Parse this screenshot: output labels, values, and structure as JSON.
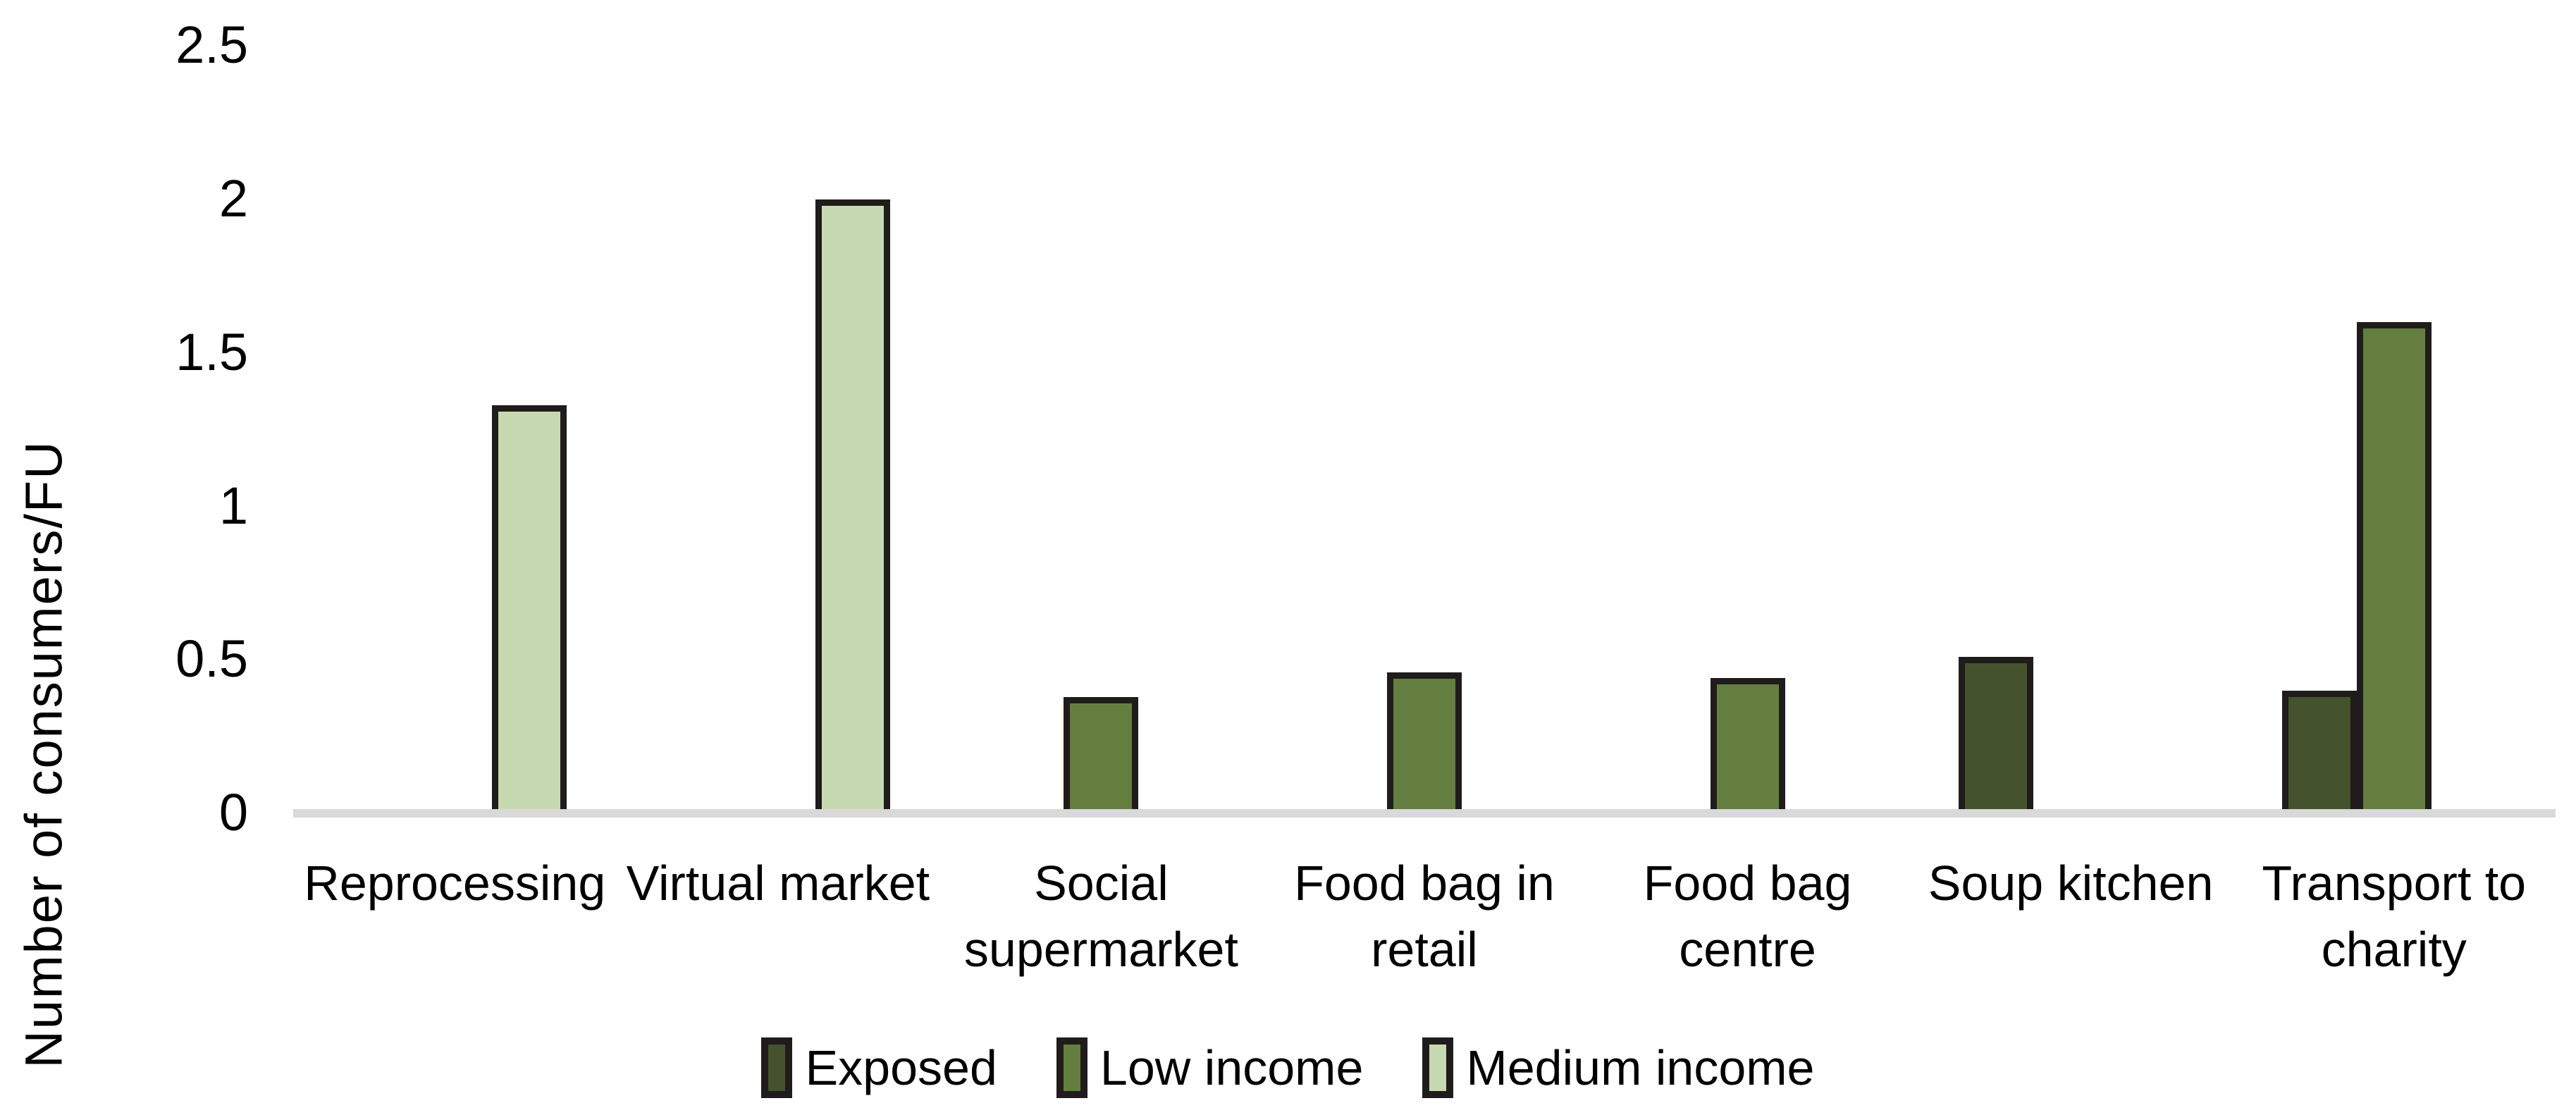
{
  "chart_data": {
    "type": "bar",
    "title": "",
    "xlabel": "",
    "ylabel": "Number of consumers/FU",
    "ylim": [
      0,
      2.5
    ],
    "ytick_values": [
      0,
      0.5,
      1,
      1.5,
      2,
      2.5
    ],
    "ytick_labels": [
      "0",
      "0.5",
      "1",
      "1.5",
      "2",
      "2.5"
    ],
    "grid": false,
    "legend_position": "bottom",
    "categories": [
      "Reprocessing",
      "Virtual market",
      "Social supermarket",
      "Food bag in retail",
      "Food bag centre",
      "Soup kitchen",
      "Transport to charity"
    ],
    "category_lines": [
      [
        "Reprocessing"
      ],
      [
        "Virtual market"
      ],
      [
        "Social",
        "supermarket"
      ],
      [
        "Food bag in",
        "retail"
      ],
      [
        "Food bag",
        "centre"
      ],
      [
        "Soup kitchen"
      ],
      [
        "Transport to",
        "charity"
      ]
    ],
    "series": [
      {
        "name": "Exposed",
        "color": "#45522e",
        "values": [
          null,
          null,
          null,
          null,
          null,
          0.51,
          0.4
        ]
      },
      {
        "name": "Low income",
        "color": "#647e40",
        "values": [
          null,
          null,
          0.38,
          0.46,
          0.44,
          null,
          1.6
        ]
      },
      {
        "name": "Medium income",
        "color": "#c7d9b1",
        "values": [
          1.33,
          2.0,
          null,
          null,
          null,
          null,
          null
        ]
      }
    ],
    "colors": {
      "bar_border": "#1f1c1b",
      "axis_line": "#d9d9d9",
      "text": "#000000",
      "background": "#ffffff"
    }
  }
}
